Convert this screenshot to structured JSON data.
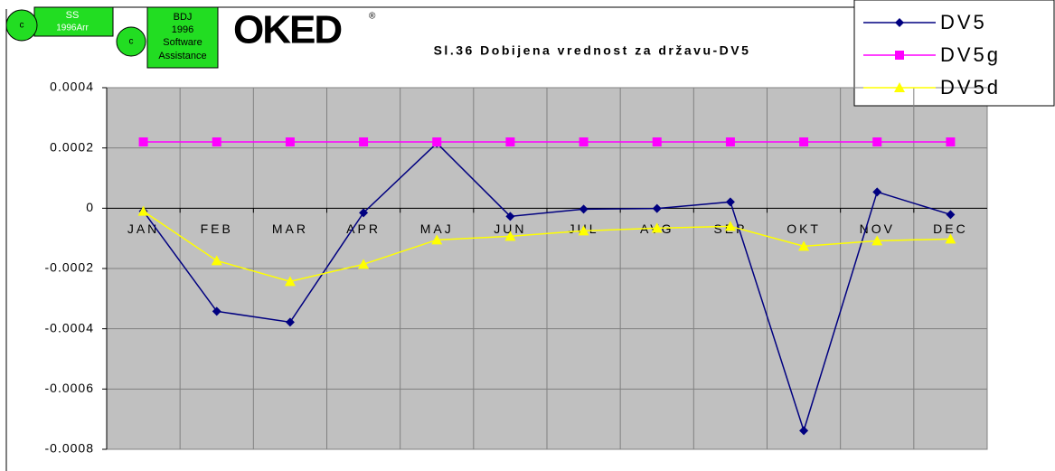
{
  "chart_data": {
    "type": "line",
    "title": "Sl.36  Dobijena vrednost za državu-DV5",
    "categories": [
      "JAN",
      "FEB",
      "MAR",
      "APR",
      "MAJ",
      "JUN",
      "JUL",
      "AVG",
      "SEP",
      "OKT",
      "NOV",
      "DEC"
    ],
    "series": [
      {
        "name": "DV5",
        "color": "#000080",
        "marker": "diamond",
        "values": [
          -1e-05,
          -0.000342,
          -0.000378,
          -1.5e-05,
          0.000216,
          -2.7e-05,
          -3e-06,
          -1e-06,
          2.1e-05,
          -0.000738,
          5.4e-05,
          -2.1e-05
        ]
      },
      {
        "name": "DV5g",
        "color": "#ff00ff",
        "marker": "square",
        "values": [
          0.00022,
          0.00022,
          0.00022,
          0.00022,
          0.00022,
          0.00022,
          0.00022,
          0.00022,
          0.00022,
          0.00022,
          0.00022,
          0.00022
        ]
      },
      {
        "name": "DV5d",
        "color": "#ffff00",
        "marker": "triangle",
        "values": [
          -1e-05,
          -0.000174,
          -0.000243,
          -0.000186,
          -0.000105,
          -9.3e-05,
          -7.5e-05,
          -6.6e-05,
          -6e-05,
          -0.000126,
          -0.000108,
          -0.000102
        ]
      }
    ],
    "ylim": [
      -0.0008,
      0.0004
    ],
    "yticks": [
      -0.0008,
      -0.0006,
      -0.0004,
      -0.0002,
      0,
      0.0002,
      0.0004
    ],
    "grid": true,
    "legend": "top-right"
  },
  "logos": {
    "ss": "SS",
    "ss_year": "1996Arr",
    "c1": "c",
    "c2": "c",
    "bdj": "BDJ",
    "bdj_year": "1996",
    "bdj_line1": "Software",
    "bdj_line2": "Assistance",
    "oked": "OKED",
    "registered": "®"
  }
}
